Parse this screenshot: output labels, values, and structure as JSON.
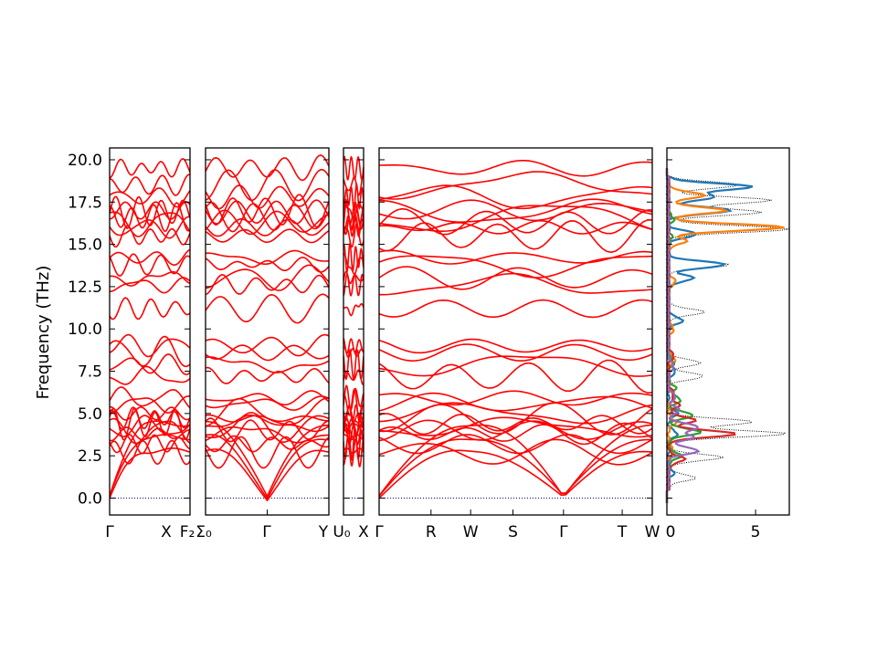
{
  "chart_data": {
    "type": "line",
    "ylabel": "Frequency (THz)",
    "ylim": [
      -1.0,
      20.7
    ],
    "y_ticks": [
      "0.0",
      "2.5",
      "5.0",
      "7.5",
      "10.0",
      "12.5",
      "15.0",
      "17.5",
      "20.0"
    ],
    "y_tick_values": [
      0,
      2.5,
      5,
      7.5,
      10,
      12.5,
      15,
      17.5,
      20
    ],
    "band_color": "#ff0000",
    "zero_line_color": "#00008b",
    "segments": [
      {
        "name": "segment-gamma-x",
        "start_label": "Γ",
        "end_label": "X",
        "kx": 0.9
      },
      {
        "name": "segment-f2-gamma-y",
        "start_label": "F₂",
        "start_label2": "Σ₀",
        "mid_label": "Γ",
        "end_label": "Y",
        "kx": 1.4
      },
      {
        "name": "segment-u0-x",
        "start_label": "U₀",
        "end_label": "X",
        "kx": 0.22
      },
      {
        "name": "segment-gamma-r-w-s-gamma-t-w",
        "labels": [
          "Γ",
          "R",
          "W",
          "S",
          "Γ",
          "T",
          "W"
        ],
        "kx": 3.0
      }
    ],
    "bands_at_gamma": [
      0,
      0,
      0,
      2.7,
      3.2,
      3.8,
      4.0,
      4.2,
      4.4,
      4.7,
      5.0,
      5.6,
      5.9,
      7.2,
      7.9,
      8.6,
      9.0,
      11.2,
      12.6,
      13.0,
      13.8,
      14.2,
      15.5,
      16.0,
      16.3,
      16.6,
      16.9,
      17.0,
      17.8,
      18.5,
      19.5
    ],
    "dos": {
      "xlim": [
        0,
        6.9
      ],
      "x_ticks": [
        "0",
        "5"
      ],
      "x_tick_values": [
        0,
        5
      ],
      "series": [
        {
          "color": "#000000",
          "style": "dotted",
          "peaks": [
            [
              1.2,
              1.5
            ],
            [
              2.4,
              3.0
            ],
            [
              3.8,
              6.6
            ],
            [
              4.5,
              4.8
            ],
            [
              7.2,
              2.0
            ],
            [
              8.0,
              1.8
            ],
            [
              11.0,
              2.0
            ],
            [
              13.8,
              3.4
            ],
            [
              15.9,
              6.8
            ],
            [
              16.9,
              5.2
            ],
            [
              17.6,
              5.8
            ],
            [
              18.5,
              4.0
            ]
          ]
        },
        {
          "color": "#1f77b4",
          "style": "solid",
          "peaks": [
            [
              1.5,
              0.3
            ],
            [
              3.8,
              0.5
            ],
            [
              5.0,
              0.5
            ],
            [
              7.5,
              0.4
            ],
            [
              10.5,
              0.8
            ],
            [
              13.0,
              1.4
            ],
            [
              13.8,
              3.2
            ],
            [
              15.6,
              1.6
            ],
            [
              17.0,
              3.5
            ],
            [
              17.8,
              2.6
            ],
            [
              18.4,
              4.7
            ]
          ]
        },
        {
          "color": "#ff7f0e",
          "style": "solid",
          "peaks": [
            [
              2.8,
              0.3
            ],
            [
              4.5,
              0.4
            ],
            [
              6.0,
              0.3
            ],
            [
              8.2,
              0.4
            ],
            [
              10.0,
              0.3
            ],
            [
              12.8,
              0.4
            ],
            [
              15.2,
              1.0
            ],
            [
              16.0,
              6.5
            ],
            [
              17.0,
              3.2
            ],
            [
              17.9,
              2.0
            ]
          ]
        },
        {
          "color": "#2ca02c",
          "style": "solid",
          "peaks": [
            [
              2.5,
              0.7
            ],
            [
              3.9,
              1.8
            ],
            [
              4.9,
              1.4
            ],
            [
              5.8,
              0.7
            ],
            [
              6.5,
              0.4
            ],
            [
              8.0,
              0.3
            ],
            [
              15.4,
              0.2
            ],
            [
              16.5,
              0.3
            ]
          ]
        },
        {
          "color": "#d62728",
          "style": "solid",
          "peaks": [
            [
              2.3,
              0.9
            ],
            [
              3.8,
              3.8
            ],
            [
              4.6,
              1.5
            ],
            [
              5.5,
              0.6
            ],
            [
              6.2,
              0.3
            ],
            [
              8.4,
              0.3
            ]
          ]
        },
        {
          "color": "#9467bd",
          "style": "solid",
          "peaks": [
            [
              2.8,
              1.7
            ],
            [
              3.6,
              1.4
            ],
            [
              4.2,
              1.7
            ],
            [
              5.2,
              0.6
            ],
            [
              6.0,
              0.4
            ],
            [
              7.8,
              0.3
            ]
          ]
        }
      ]
    }
  }
}
